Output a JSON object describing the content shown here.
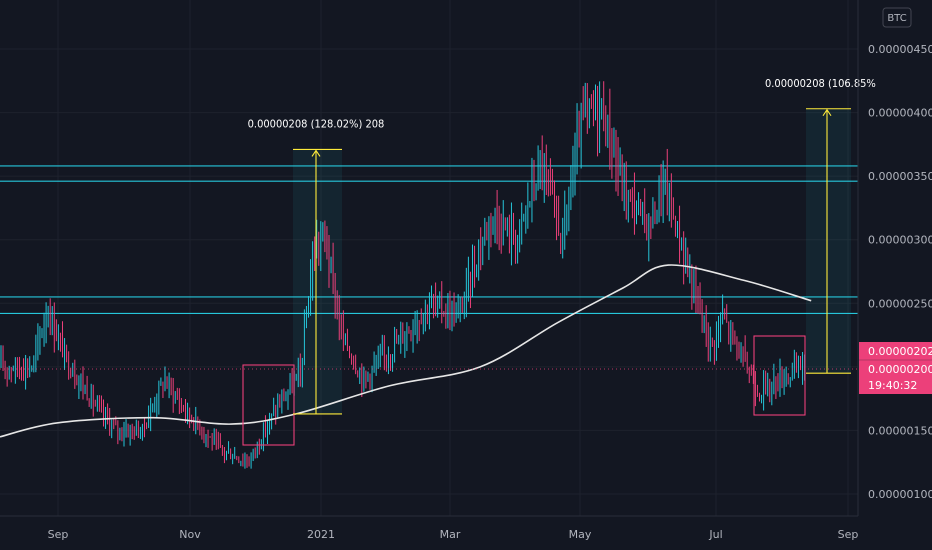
{
  "chart_data": {
    "type": "candlestick",
    "currency_badge": "BTC",
    "x_tick_labels": [
      "Sep",
      "Nov",
      "2021",
      "Mar",
      "May",
      "Jul",
      "Sep"
    ],
    "y_tick_labels": [
      "0.00000450",
      "0.00000400",
      "0.00000350",
      "0.00000300",
      "0.00000250",
      "0.00000200",
      "0.00000150",
      "0.00000100"
    ],
    "ylim": [
      8.5e-07,
      4.72e-06
    ],
    "grid": true,
    "price_tags": {
      "last_price": "0.00000202",
      "price_line": "0.00000200",
      "countdown": "19:40:32"
    },
    "measure_annotations": [
      {
        "label": "0.00000208 (128.02%) 208",
        "from": 1.63e-06,
        "to": 3.71e-06
      },
      {
        "label": "0.00000208 (106.85%",
        "from": 1.95e-06,
        "to": 4.03e-06
      }
    ],
    "horizontal_levels": [
      3.58e-06,
      3.46e-06,
      2.55e-06,
      2.42e-06
    ],
    "moving_average_samples": [
      {
        "date": "2020-08-20",
        "value": 1.45e-06
      },
      {
        "date": "2020-09-01",
        "value": 1.56e-06
      },
      {
        "date": "2020-10-15",
        "value": 1.6e-06
      },
      {
        "date": "2020-11-20",
        "value": 1.55e-06
      },
      {
        "date": "2020-12-20",
        "value": 1.63e-06
      },
      {
        "date": "2021-02-01",
        "value": 1.85e-06
      },
      {
        "date": "2021-03-15",
        "value": 2e-06
      },
      {
        "date": "2021-04-20",
        "value": 2.35e-06
      },
      {
        "date": "2021-05-20",
        "value": 2.62e-06
      },
      {
        "date": "2021-06-10",
        "value": 2.8e-06
      },
      {
        "date": "2021-07-15",
        "value": 2.68e-06
      },
      {
        "date": "2021-08-15",
        "value": 2.52e-06
      }
    ],
    "price_path": [
      {
        "date": "2020-08-20",
        "value": 2e-06
      },
      {
        "date": "2020-08-27",
        "value": 2.45e-06
      },
      {
        "date": "2020-09-05",
        "value": 2.05e-06
      },
      {
        "date": "2020-09-20",
        "value": 1.65e-06
      },
      {
        "date": "2020-09-28",
        "value": 1.5e-06
      },
      {
        "date": "2020-10-10",
        "value": 1.5e-06
      },
      {
        "date": "2020-10-20",
        "value": 1.9e-06
      },
      {
        "date": "2020-10-30",
        "value": 1.65e-06
      },
      {
        "date": "2020-11-15",
        "value": 1.35e-06
      },
      {
        "date": "2020-11-28",
        "value": 1.25e-06
      },
      {
        "date": "2020-12-10",
        "value": 1.65e-06
      },
      {
        "date": "2020-12-22",
        "value": 1.95e-06
      },
      {
        "date": "2020-12-28",
        "value": 2.9e-06
      },
      {
        "date": "2021-01-02",
        "value": 3.05e-06
      },
      {
        "date": "2021-01-10",
        "value": 2.25e-06
      },
      {
        "date": "2021-01-20",
        "value": 1.9e-06
      },
      {
        "date": "2021-02-05",
        "value": 2.2e-06
      },
      {
        "date": "2021-02-20",
        "value": 2.5e-06
      },
      {
        "date": "2021-03-05",
        "value": 2.4e-06
      },
      {
        "date": "2021-03-20",
        "value": 3.2e-06
      },
      {
        "date": "2021-04-01",
        "value": 3e-06
      },
      {
        "date": "2021-04-12",
        "value": 3.6e-06
      },
      {
        "date": "2021-04-22",
        "value": 3e-06
      },
      {
        "date": "2021-05-01",
        "value": 3.95e-06
      },
      {
        "date": "2021-05-10",
        "value": 4.05e-06
      },
      {
        "date": "2021-05-20",
        "value": 3.4e-06
      },
      {
        "date": "2021-06-01",
        "value": 3.1e-06
      },
      {
        "date": "2021-06-08",
        "value": 3.45e-06
      },
      {
        "date": "2021-06-20",
        "value": 2.7e-06
      },
      {
        "date": "2021-06-30",
        "value": 2.15e-06
      },
      {
        "date": "2021-07-05",
        "value": 2.4e-06
      },
      {
        "date": "2021-07-22",
        "value": 1.8e-06
      },
      {
        "date": "2021-08-05",
        "value": 1.95e-06
      },
      {
        "date": "2021-08-12",
        "value": 2.02e-06
      }
    ]
  },
  "colors": {
    "background": "#131722",
    "grid": "#1e222d",
    "bull": "#26c6da",
    "bear": "#ec407a",
    "level_line": "#26c6da",
    "moving_average": "#e6e6e6",
    "measure": "#ffeb3b",
    "highlight_box": "#ec407a",
    "last_price_tag": "#ec407a"
  }
}
